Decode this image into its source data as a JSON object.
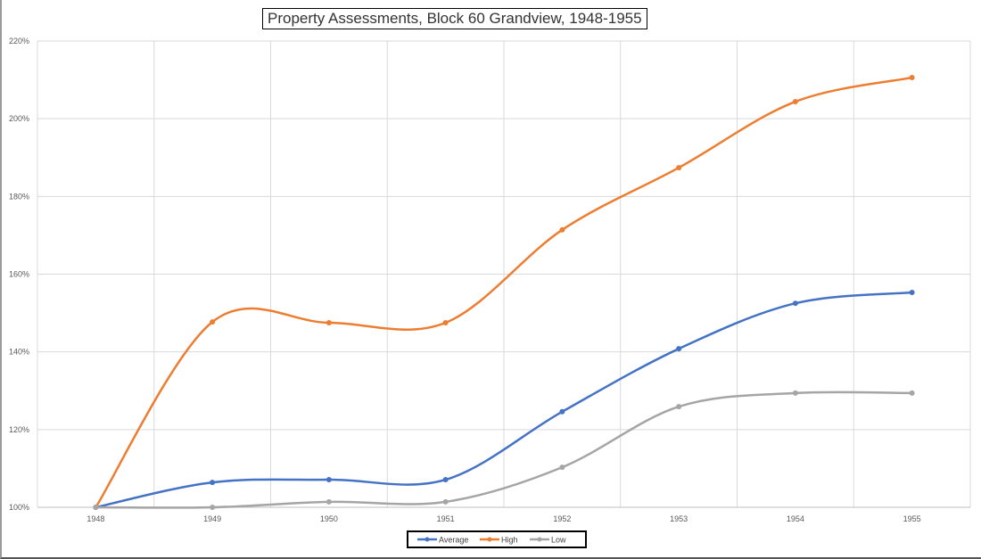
{
  "chart_data": {
    "type": "line",
    "title": "Property Assessments, Block 60 Grandview, 1948-1955",
    "categories": [
      "1948",
      "1949",
      "1950",
      "1951",
      "1952",
      "1953",
      "1954",
      "1955"
    ],
    "ylim": [
      100,
      220
    ],
    "yticks": [
      "100%",
      "120%",
      "140%",
      "160%",
      "180%",
      "200%",
      "220%"
    ],
    "ytick_values": [
      100,
      120,
      140,
      160,
      180,
      200,
      220
    ],
    "grid": true,
    "smoothed": true,
    "legend_placement": "bottom",
    "series": [
      {
        "name": "Average",
        "color": "#4472C4",
        "values": [
          100,
          106.4,
          107.1,
          107.1,
          124.6,
          140.8,
          152.5,
          155.3
        ]
      },
      {
        "name": "High",
        "color": "#ED7D31",
        "values": [
          100,
          147.7,
          147.5,
          147.5,
          171.4,
          187.4,
          204.4,
          210.6
        ]
      },
      {
        "name": "Low",
        "color": "#A5A5A5",
        "values": [
          100,
          100,
          101.4,
          101.4,
          110.3,
          125.9,
          129.4,
          129.4
        ]
      }
    ]
  }
}
